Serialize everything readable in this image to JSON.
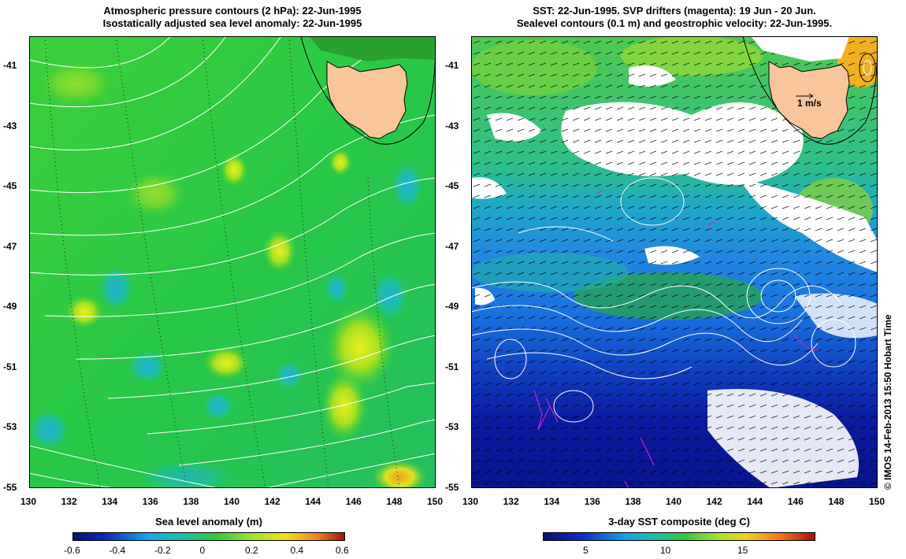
{
  "left_panel": {
    "title_line1": "Atmospheric pressure contours (2 hPa): 22-Jun-1995",
    "title_line2": "Isostatically adjusted sea level anomaly: 22-Jun-1995",
    "colorbar_label": "Sea level anomaly (m)",
    "colorbar_ticks": [
      "-0.6",
      "-0.4",
      "-0.2",
      "0",
      "0.2",
      "0.4",
      "0.6"
    ]
  },
  "right_panel": {
    "title_line1": "SST: 22-Jun-1995. SVP drifters (magenta): 19 Jun - 20 Jun.",
    "title_line2": "Sealevel contours (0.1 m) and geostrophic velocity: 22-Jun-1995.",
    "colorbar_label": "3-day SST composite (deg C)",
    "colorbar_ticks": [
      "5",
      "10",
      "15"
    ],
    "velocity_scale_label": "1 m/s"
  },
  "axes": {
    "x_ticks": [
      "130",
      "132",
      "134",
      "136",
      "138",
      "140",
      "142",
      "144",
      "146",
      "148",
      "150"
    ],
    "y_ticks": [
      "-41",
      "-43",
      "-45",
      "-47",
      "-49",
      "-51",
      "-53",
      "-55"
    ]
  },
  "credit": "© IMOS 14-Feb-2013 15:50 Hobart Time",
  "colors": {
    "land": "#f9c59a",
    "sla_base": "#22c832",
    "sst_cold": "#0a1a9e",
    "sst_mid": "#1e9ad6",
    "drifter": "#d020d0"
  }
}
